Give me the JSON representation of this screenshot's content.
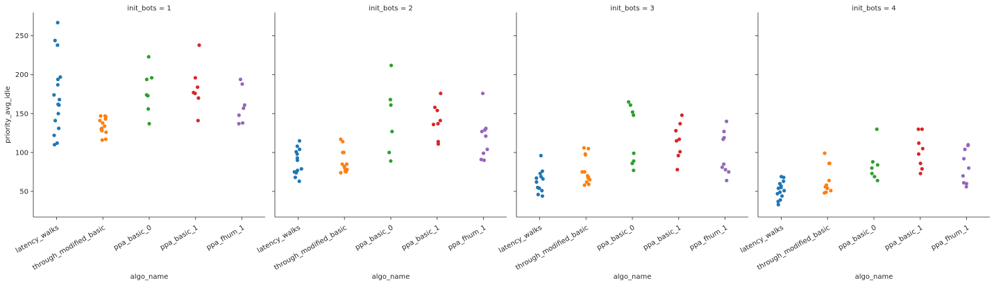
{
  "chart_data": {
    "type": "scatter",
    "kind": "strip",
    "ylabel": "priority_avg_idle",
    "xlabel": "algo_name",
    "categories": [
      "latency_walks",
      "through_modified_basic",
      "ppa_basic_0",
      "ppa_basic_1",
      "ppa_fhum_1"
    ],
    "colors": [
      "#1f77b4",
      "#ff7f0e",
      "#2ca02c",
      "#d62728",
      "#9467bd"
    ],
    "yticks": [
      50,
      100,
      150,
      200,
      250
    ],
    "ylim": [
      17,
      280
    ],
    "grid": false,
    "sharey": true,
    "facets": [
      {
        "title": "init_bots = 1",
        "series": [
          {
            "values": [
              267,
              244,
              238,
              197,
              194,
              187,
              174,
              168,
              162,
              161,
              150,
              141,
              131,
              122,
              112,
              110
            ]
          },
          {
            "values": [
              147,
              147,
              146,
              143,
              141,
              138,
              134,
              131,
              130,
              128,
              126,
              117,
              116
            ]
          },
          {
            "values": [
              223,
              196,
              194,
              174,
              173,
              156,
              137
            ]
          },
          {
            "values": [
              238,
              196,
              184,
              177,
              176,
              170,
              141
            ]
          },
          {
            "values": [
              194,
              188,
              161,
              157,
              148,
              138,
              137
            ]
          }
        ]
      },
      {
        "title": "init_bots = 2",
        "series": [
          {
            "values": [
              115,
              108,
              104,
              101,
              98,
              93,
              90,
              79,
              77,
              75,
              74,
              68,
              63
            ]
          },
          {
            "values": [
              117,
              114,
              100,
              100,
              85,
              85,
              82,
              80,
              78,
              76,
              75,
              74
            ]
          },
          {
            "values": [
              212,
              168,
              161,
              127,
              100,
              89
            ]
          },
          {
            "values": [
              176,
              158,
              154,
              141,
              137,
              136,
              114,
              111
            ]
          },
          {
            "values": [
              176,
              131,
              129,
              127,
              121,
              104,
              99,
              91,
              90
            ]
          }
        ]
      },
      {
        "title": "init_bots = 3",
        "series": [
          {
            "values": [
              96,
              76,
              73,
              69,
              67,
              66,
              62,
              55,
              54,
              51,
              46,
              44
            ]
          },
          {
            "values": [
              106,
              105,
              98,
              97,
              75,
              75,
              70,
              68,
              67,
              65,
              62,
              59,
              58
            ]
          },
          {
            "values": [
              165,
              161,
              152,
              148,
              99,
              89,
              86,
              77
            ]
          },
          {
            "values": [
              148,
              137,
              128,
              117,
              115,
              101,
              96,
              78
            ]
          },
          {
            "values": [
              140,
              127,
              119,
              117,
              85,
              81,
              78,
              75,
              64
            ]
          }
        ]
      },
      {
        "title": "init_bots = 4",
        "series": [
          {
            "values": [
              69,
              68,
              63,
              60,
              57,
              55,
              54,
              51,
              49,
              47,
              44,
              39,
              37,
              33
            ]
          },
          {
            "values": [
              99,
              99,
              86,
              86,
              64,
              58,
              56,
              54,
              51,
              49,
              48
            ]
          },
          {
            "values": [
              130,
              88,
              84,
              80,
              73,
              69,
              64
            ]
          },
          {
            "values": [
              130,
              130,
              112,
              105,
              98,
              86,
              79,
              73
            ]
          },
          {
            "values": [
              110,
              109,
              104,
              92,
              80,
              70,
              61,
              60,
              56
            ]
          }
        ]
      }
    ]
  }
}
